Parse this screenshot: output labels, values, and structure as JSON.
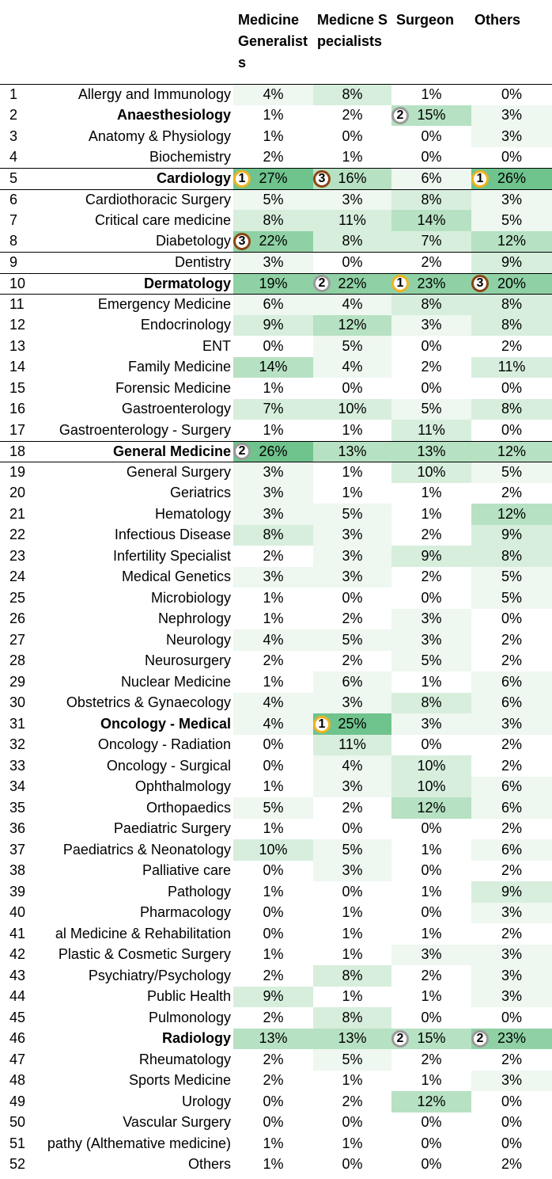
{
  "headers": [
    "Medicine Generalists",
    "Medicne Specialists",
    "Surgeon",
    "Others"
  ],
  "heat_colors": [
    "#ffffff",
    "#eef7f0",
    "#d7eedd",
    "#b7e1c3",
    "#8fd1a5",
    "#6fc38d"
  ],
  "rank_colors": {
    "1": "#f0b323",
    "2": "#9a9a9a",
    "3": "#8b4513"
  },
  "rows": [
    {
      "num": "1",
      "name": "Allergy and Immunology",
      "bold": false,
      "values": [
        "4%",
        "8%",
        "1%",
        "0%"
      ]
    },
    {
      "num": "2",
      "name": "Anaesthesiology",
      "bold": true,
      "values": [
        "1%",
        "2%",
        "15%",
        "3%"
      ]
    },
    {
      "num": "3",
      "name": "Anatomy & Physiology",
      "bold": false,
      "values": [
        "1%",
        "0%",
        "0%",
        "3%"
      ]
    },
    {
      "num": "4",
      "name": "Biochemistry",
      "bold": false,
      "values": [
        "2%",
        "1%",
        "0%",
        "0%"
      ]
    },
    {
      "num": "5",
      "name": "Cardiology",
      "bold": true,
      "values": [
        "27%",
        "16%",
        "6%",
        "26%"
      ]
    },
    {
      "num": "6",
      "name": "Cardiothoracic Surgery",
      "bold": false,
      "values": [
        "5%",
        "3%",
        "8%",
        "3%"
      ]
    },
    {
      "num": "7",
      "name": "Critical care medicine",
      "bold": false,
      "values": [
        "8%",
        "11%",
        "14%",
        "5%"
      ]
    },
    {
      "num": "8",
      "name": "Diabetology",
      "bold": false,
      "values": [
        "22%",
        "8%",
        "7%",
        "12%"
      ]
    },
    {
      "num": "9",
      "name": "Dentistry",
      "bold": false,
      "values": [
        "3%",
        "0%",
        "2%",
        "9%"
      ]
    },
    {
      "num": "10",
      "name": "Dermatology",
      "bold": true,
      "values": [
        "19%",
        "22%",
        "23%",
        "20%"
      ]
    },
    {
      "num": "11",
      "name": "Emergency Medicine",
      "bold": false,
      "values": [
        "6%",
        "4%",
        "8%",
        "8%"
      ]
    },
    {
      "num": "12",
      "name": "Endocrinology",
      "bold": false,
      "values": [
        "9%",
        "12%",
        "3%",
        "8%"
      ]
    },
    {
      "num": "13",
      "name": "ENT",
      "bold": false,
      "values": [
        "0%",
        "5%",
        "0%",
        "2%"
      ]
    },
    {
      "num": "14",
      "name": "Family Medicine",
      "bold": false,
      "values": [
        "14%",
        "4%",
        "2%",
        "11%"
      ]
    },
    {
      "num": "15",
      "name": "Forensic Medicine",
      "bold": false,
      "values": [
        "1%",
        "0%",
        "0%",
        "0%"
      ]
    },
    {
      "num": "16",
      "name": "Gastroenterology",
      "bold": false,
      "values": [
        "7%",
        "10%",
        "5%",
        "8%"
      ]
    },
    {
      "num": "17",
      "name": "Gastroenterology - Surgery",
      "bold": false,
      "values": [
        "1%",
        "1%",
        "11%",
        "0%"
      ]
    },
    {
      "num": "18",
      "name": "General Medicine",
      "bold": true,
      "values": [
        "26%",
        "13%",
        "13%",
        "12%"
      ]
    },
    {
      "num": "19",
      "name": "General Surgery",
      "bold": false,
      "values": [
        "3%",
        "1%",
        "10%",
        "5%"
      ]
    },
    {
      "num": "20",
      "name": "Geriatrics",
      "bold": false,
      "values": [
        "3%",
        "1%",
        "1%",
        "2%"
      ]
    },
    {
      "num": "21",
      "name": "Hematology",
      "bold": false,
      "values": [
        "3%",
        "5%",
        "1%",
        "12%"
      ]
    },
    {
      "num": "22",
      "name": "Infectious Disease",
      "bold": false,
      "values": [
        "8%",
        "3%",
        "2%",
        "9%"
      ]
    },
    {
      "num": "23",
      "name": "Infertility Specialist",
      "bold": false,
      "values": [
        "2%",
        "3%",
        "9%",
        "8%"
      ]
    },
    {
      "num": "24",
      "name": "Medical Genetics",
      "bold": false,
      "values": [
        "3%",
        "3%",
        "2%",
        "5%"
      ]
    },
    {
      "num": "25",
      "name": "Microbiology",
      "bold": false,
      "values": [
        "1%",
        "0%",
        "0%",
        "5%"
      ]
    },
    {
      "num": "26",
      "name": "Nephrology",
      "bold": false,
      "values": [
        "1%",
        "2%",
        "3%",
        "0%"
      ]
    },
    {
      "num": "27",
      "name": "Neurology",
      "bold": false,
      "values": [
        "4%",
        "5%",
        "3%",
        "2%"
      ]
    },
    {
      "num": "28",
      "name": "Neurosurgery",
      "bold": false,
      "values": [
        "2%",
        "2%",
        "5%",
        "2%"
      ]
    },
    {
      "num": "29",
      "name": "Nuclear Medicine",
      "bold": false,
      "values": [
        "1%",
        "6%",
        "1%",
        "6%"
      ]
    },
    {
      "num": "30",
      "name": "Obstetrics & Gynaecology",
      "bold": false,
      "values": [
        "4%",
        "3%",
        "8%",
        "6%"
      ]
    },
    {
      "num": "31",
      "name": "Oncology - Medical",
      "bold": true,
      "values": [
        "4%",
        "25%",
        "3%",
        "3%"
      ]
    },
    {
      "num": "32",
      "name": "Oncology - Radiation",
      "bold": false,
      "values": [
        "0%",
        "11%",
        "0%",
        "2%"
      ]
    },
    {
      "num": "33",
      "name": "Oncology - Surgical",
      "bold": false,
      "values": [
        "0%",
        "4%",
        "10%",
        "2%"
      ]
    },
    {
      "num": "34",
      "name": "Ophthalmology",
      "bold": false,
      "values": [
        "1%",
        "3%",
        "10%",
        "6%"
      ]
    },
    {
      "num": "35",
      "name": "Orthopaedics",
      "bold": false,
      "values": [
        "5%",
        "2%",
        "12%",
        "6%"
      ]
    },
    {
      "num": "36",
      "name": "Paediatric Surgery",
      "bold": false,
      "values": [
        "1%",
        "0%",
        "0%",
        "2%"
      ]
    },
    {
      "num": "37",
      "name": "Paediatrics & Neonatology",
      "bold": false,
      "values": [
        "10%",
        "5%",
        "1%",
        "6%"
      ]
    },
    {
      "num": "38",
      "name": "Palliative care",
      "bold": false,
      "values": [
        "0%",
        "3%",
        "0%",
        "2%"
      ]
    },
    {
      "num": "39",
      "name": "Pathology",
      "bold": false,
      "values": [
        "1%",
        "0%",
        "1%",
        "9%"
      ]
    },
    {
      "num": "40",
      "name": "Pharmacology",
      "bold": false,
      "values": [
        "0%",
        "1%",
        "0%",
        "3%"
      ]
    },
    {
      "num": "41",
      "name": "al Medicine & Rehabilitation",
      "bold": false,
      "values": [
        "0%",
        "1%",
        "1%",
        "2%"
      ]
    },
    {
      "num": "42",
      "name": "Plastic & Cosmetic Surgery",
      "bold": false,
      "values": [
        "1%",
        "1%",
        "3%",
        "3%"
      ]
    },
    {
      "num": "43",
      "name": "Psychiatry/Psychology",
      "bold": false,
      "values": [
        "2%",
        "8%",
        "2%",
        "3%"
      ]
    },
    {
      "num": "44",
      "name": "Public Health",
      "bold": false,
      "values": [
        "9%",
        "1%",
        "1%",
        "3%"
      ]
    },
    {
      "num": "45",
      "name": "Pulmonology",
      "bold": false,
      "values": [
        "2%",
        "8%",
        "0%",
        "0%"
      ]
    },
    {
      "num": "46",
      "name": "Radiology",
      "bold": true,
      "values": [
        "13%",
        "13%",
        "15%",
        "23%"
      ]
    },
    {
      "num": "47",
      "name": "Rheumatology",
      "bold": false,
      "values": [
        "2%",
        "5%",
        "2%",
        "2%"
      ]
    },
    {
      "num": "48",
      "name": "Sports Medicine",
      "bold": false,
      "values": [
        "2%",
        "1%",
        "1%",
        "3%"
      ]
    },
    {
      "num": "49",
      "name": "Urology",
      "bold": false,
      "values": [
        "0%",
        "2%",
        "12%",
        "0%"
      ]
    },
    {
      "num": "50",
      "name": "Vascular Surgery",
      "bold": false,
      "values": [
        "0%",
        "0%",
        "0%",
        "0%"
      ]
    },
    {
      "num": "51",
      "name": "pathy (Althemative medicine)",
      "bold": false,
      "values": [
        "1%",
        "1%",
        "0%",
        "0%"
      ]
    },
    {
      "num": "52",
      "name": "Others",
      "bold": false,
      "values": [
        "1%",
        "0%",
        "0%",
        "2%"
      ]
    }
  ],
  "ranks": [
    {
      "row": "2",
      "col": 2,
      "rank": "2"
    },
    {
      "row": "5",
      "col": 0,
      "rank": "1"
    },
    {
      "row": "5",
      "col": 1,
      "rank": "3"
    },
    {
      "row": "5",
      "col": 3,
      "rank": "1"
    },
    {
      "row": "8",
      "col": 0,
      "rank": "3"
    },
    {
      "row": "10",
      "col": 1,
      "rank": "2"
    },
    {
      "row": "10",
      "col": 2,
      "rank": "1"
    },
    {
      "row": "10",
      "col": 3,
      "rank": "3"
    },
    {
      "row": "18",
      "col": 0,
      "rank": "2"
    },
    {
      "row": "31",
      "col": 1,
      "rank": "1"
    },
    {
      "row": "46",
      "col": 2,
      "rank": "2"
    },
    {
      "row": "46",
      "col": 3,
      "rank": "2"
    }
  ],
  "separators": [
    "1",
    "5",
    "6",
    "9",
    "10",
    "11",
    "18",
    "19"
  ]
}
